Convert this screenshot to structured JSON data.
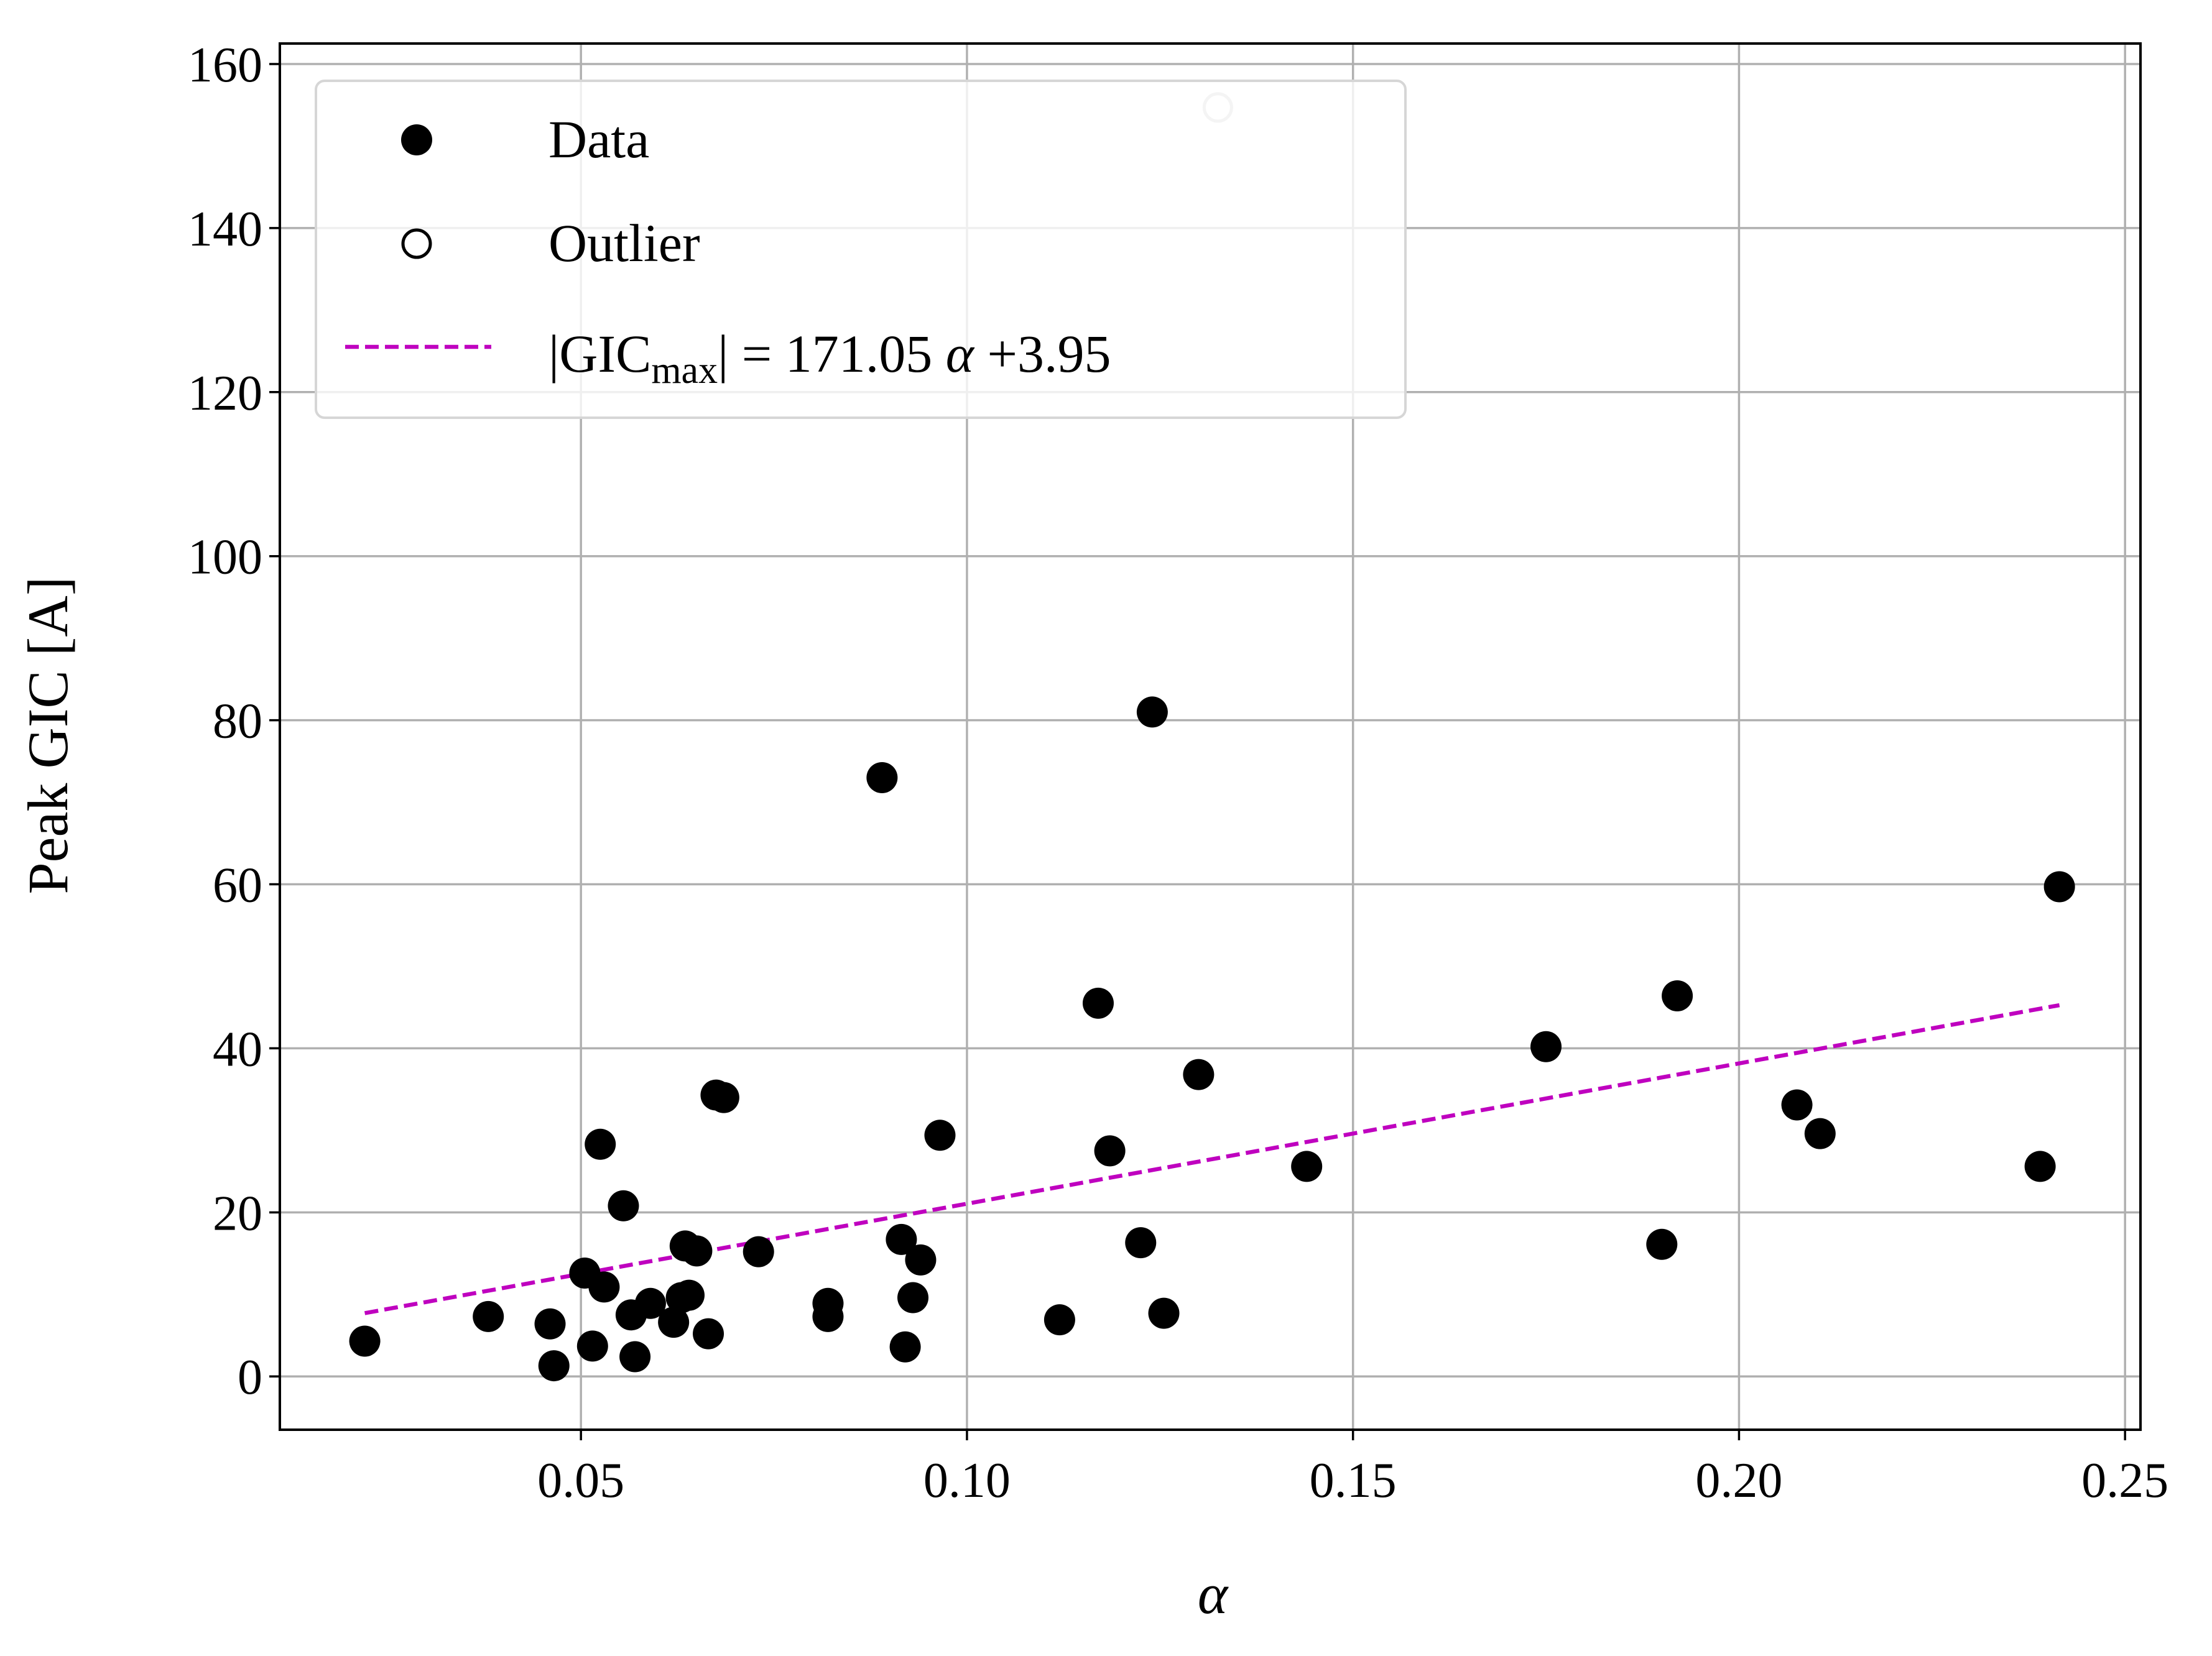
{
  "chart_data": {
    "type": "scatter",
    "xlabel": "α",
    "ylabel": "Peak GIC [A]",
    "xlim": [
      0.011,
      0.252
    ],
    "ylim": [
      -6.5,
      162.5
    ],
    "xticks": [
      0.05,
      0.1,
      0.15,
      0.2,
      0.25
    ],
    "xtick_labels": [
      "0.05",
      "0.10",
      "0.15",
      "0.20",
      "0.25"
    ],
    "yticks": [
      0,
      20,
      40,
      60,
      80,
      100,
      120,
      140,
      160
    ],
    "ytick_labels": [
      "0",
      "20",
      "40",
      "60",
      "80",
      "100",
      "120",
      "140",
      "160"
    ],
    "grid": true,
    "legend": {
      "placement": "top-left",
      "entries": {
        "data": "Data",
        "outlier": "Outlier",
        "fit_prefix": "|GIC",
        "fit_sub": "max",
        "fit_suffix": "| = 171.05 ",
        "fit_alpha": "α",
        "fit_tail": " +3.95"
      }
    },
    "colors": {
      "data": "#000000",
      "outlier": "#c8c8c8",
      "fit": "#bf00bf",
      "grid": "#b0b0b0"
    },
    "series": [
      {
        "name": "Data",
        "points": [
          [
            0.022,
            4.3
          ],
          [
            0.038,
            7.3
          ],
          [
            0.046,
            6.4
          ],
          [
            0.0465,
            1.3
          ],
          [
            0.0505,
            12.6
          ],
          [
            0.0515,
            3.7
          ],
          [
            0.0525,
            28.3
          ],
          [
            0.053,
            10.9
          ],
          [
            0.0555,
            20.8
          ],
          [
            0.0565,
            7.5
          ],
          [
            0.057,
            2.4
          ],
          [
            0.059,
            8.9
          ],
          [
            0.062,
            6.6
          ],
          [
            0.063,
            9.6
          ],
          [
            0.0635,
            15.9
          ],
          [
            0.064,
            9.9
          ],
          [
            0.065,
            15.3
          ],
          [
            0.0665,
            5.2
          ],
          [
            0.0675,
            34.3
          ],
          [
            0.0685,
            34.0
          ],
          [
            0.073,
            15.2
          ],
          [
            0.082,
            8.9
          ],
          [
            0.082,
            7.3
          ],
          [
            0.089,
            73.0
          ],
          [
            0.0915,
            16.7
          ],
          [
            0.092,
            3.6
          ],
          [
            0.093,
            9.6
          ],
          [
            0.094,
            14.2
          ],
          [
            0.0965,
            29.4
          ],
          [
            0.112,
            6.9
          ],
          [
            0.117,
            45.5
          ],
          [
            0.1185,
            27.5
          ],
          [
            0.1225,
            16.3
          ],
          [
            0.124,
            81.0
          ],
          [
            0.1255,
            7.7
          ],
          [
            0.13,
            36.8
          ],
          [
            0.144,
            25.6
          ],
          [
            0.175,
            40.2
          ],
          [
            0.19,
            16.1
          ],
          [
            0.192,
            46.4
          ],
          [
            0.2075,
            33.1
          ],
          [
            0.2105,
            29.6
          ],
          [
            0.239,
            25.6
          ],
          [
            0.2415,
            59.7
          ]
        ]
      },
      {
        "name": "Outlier",
        "points": [
          [
            0.1325,
            154.7
          ]
        ]
      },
      {
        "name": "|GICmax| = 171.05 α +3.95",
        "type": "line",
        "style": "dashed",
        "slope": 171.05,
        "intercept": 3.95,
        "x_range": [
          0.022,
          0.2415
        ]
      }
    ]
  }
}
